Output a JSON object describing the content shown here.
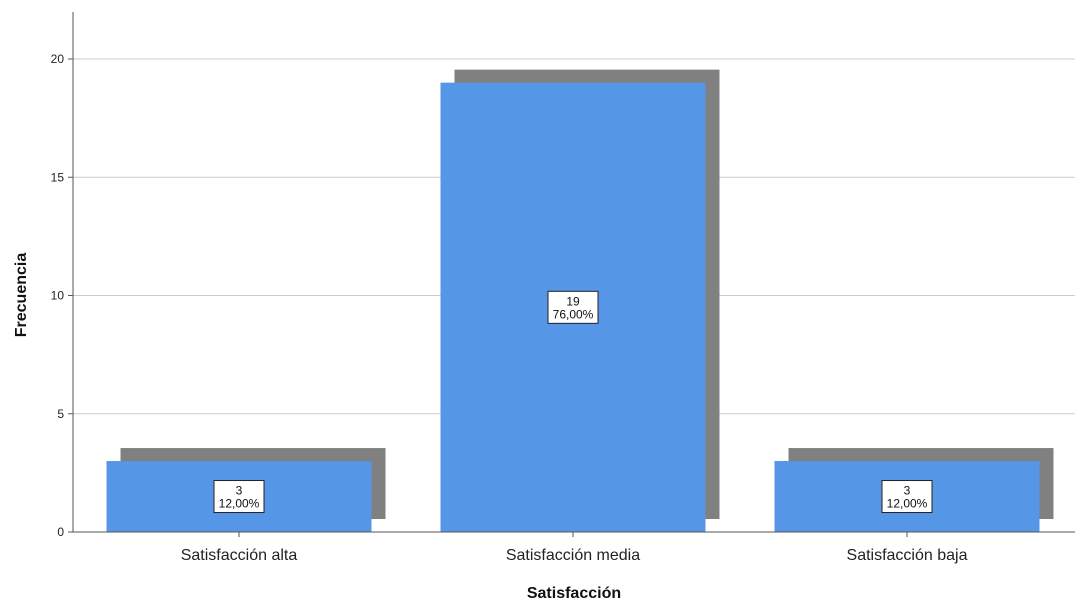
{
  "chart_data": {
    "type": "bar",
    "categories": [
      "Satisfacción alta",
      "Satisfacción media",
      "Satisfacción baja"
    ],
    "values": [
      3,
      19,
      3
    ],
    "percent_labels": [
      "12,00%",
      "76,00%",
      "12,00%"
    ],
    "xlabel": "Satisfacción",
    "ylabel": "Frecuencia",
    "ylim": [
      0,
      20
    ],
    "yticks": [
      0,
      5,
      10,
      15,
      20
    ],
    "grid": true,
    "bar_style": "3d-drop-shadow",
    "colors": {
      "bar": "#5596E6",
      "shadow": "#808080",
      "grid": "#cccccc",
      "axis": "#555555"
    }
  }
}
